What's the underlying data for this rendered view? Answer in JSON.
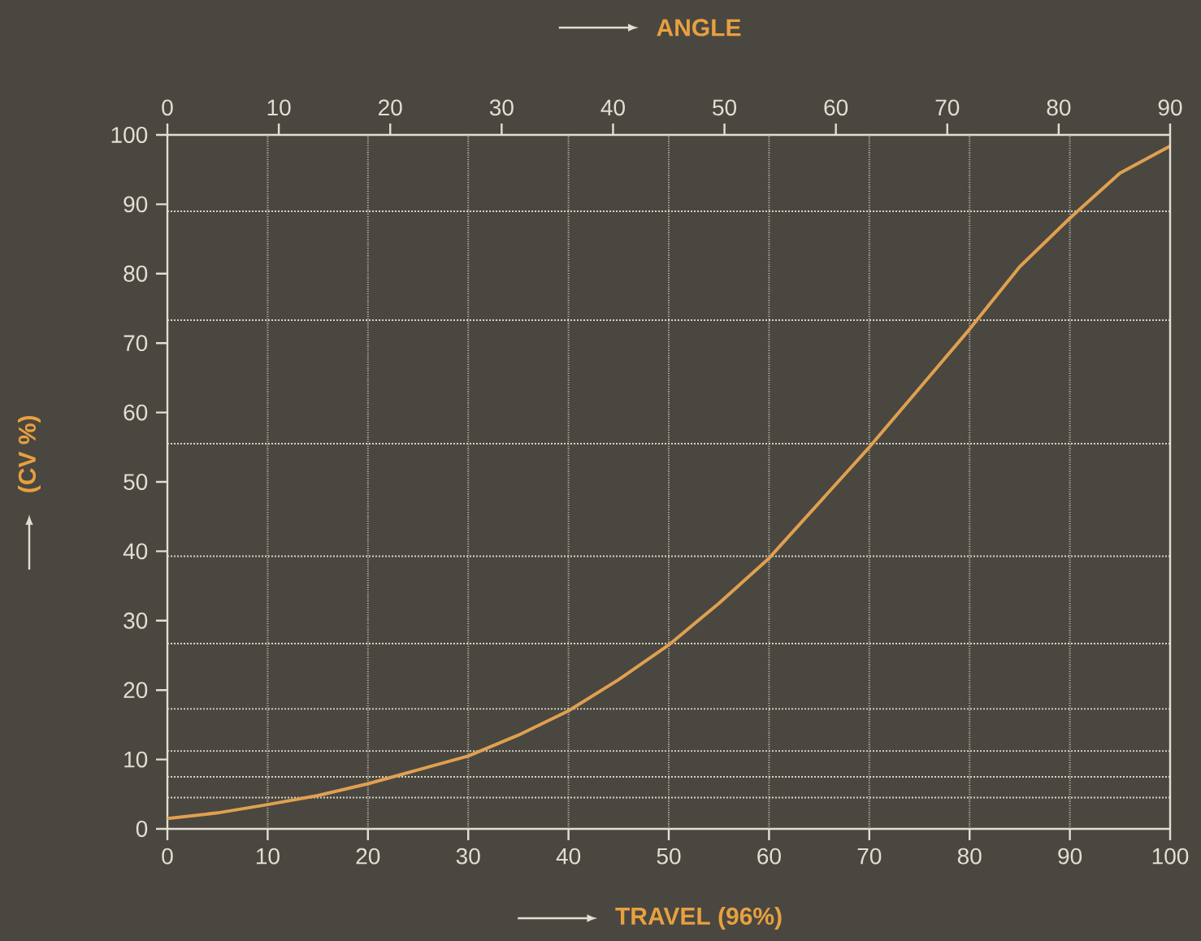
{
  "chart_data": {
    "type": "line",
    "xlabel": "TRAVEL (96%)",
    "ylabel": "(CV %)",
    "x2label": "ANGLE",
    "xlim": [
      0,
      100
    ],
    "xticks": [
      0,
      10,
      20,
      30,
      40,
      50,
      60,
      70,
      80,
      90,
      100
    ],
    "x2lim": [
      0,
      90
    ],
    "x2ticks": [
      0,
      10,
      20,
      30,
      40,
      50,
      60,
      70,
      80,
      90
    ],
    "ylim": [
      0,
      100
    ],
    "yticks": [
      0,
      10,
      20,
      30,
      40,
      50,
      60,
      70,
      80,
      90,
      100
    ],
    "grid": "x",
    "marker": "none",
    "line_style": "solid",
    "x": [
      0,
      5,
      10,
      15,
      20,
      25,
      30,
      35,
      40,
      45,
      50,
      55,
      60,
      65,
      70,
      75,
      80,
      85,
      90,
      95,
      100
    ],
    "series": [
      {
        "color": "#e0a050",
        "values": [
          1.5,
          2.3,
          3.5,
          4.8,
          6.5,
          8.5,
          10.5,
          13.5,
          17,
          21.5,
          26.5,
          32.5,
          39,
          47,
          55,
          63.5,
          72,
          81,
          88,
          94.5,
          98.4
        ]
      }
    ],
    "ref_lines": [
      {
        "axis": "y",
        "value": 4.5,
        "color": "#d8d4c4",
        "line_style": "dotted"
      },
      {
        "axis": "y",
        "value": 7.5,
        "color": "#d8d4c4",
        "line_style": "dotted"
      },
      {
        "axis": "y",
        "value": 11.2,
        "color": "#d8d4c4",
        "line_style": "dotted"
      },
      {
        "axis": "y",
        "value": 17.3,
        "color": "#d8d4c4",
        "line_style": "dotted"
      },
      {
        "axis": "y",
        "value": 26.7,
        "color": "#d8d4c4",
        "line_style": "dotted"
      },
      {
        "axis": "y",
        "value": 39.3,
        "color": "#d8d4c4",
        "line_style": "dotted"
      },
      {
        "axis": "y",
        "value": 55.5,
        "color": "#d8d4c4",
        "line_style": "dotted"
      },
      {
        "axis": "y",
        "value": 73.3,
        "color": "#d8d4c4",
        "line_style": "dotted"
      },
      {
        "axis": "y",
        "value": 89,
        "color": "#d8d4c4",
        "line_style": "dotted"
      }
    ]
  }
}
